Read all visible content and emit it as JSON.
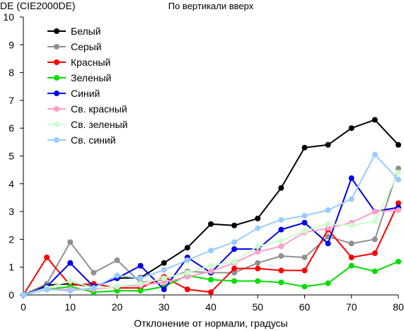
{
  "chart_data": {
    "type": "line",
    "title": "По вертикали вверх",
    "ylabel": "DE (CIE2000DE)",
    "xlabel": "Отклонение от нормали, градусы",
    "xlim": [
      0,
      80
    ],
    "ylim": [
      0,
      10
    ],
    "xticks": [
      0,
      10,
      20,
      30,
      40,
      50,
      60,
      70,
      80
    ],
    "yticks": [
      0,
      1,
      2,
      3,
      4,
      5,
      6,
      7,
      8,
      9,
      10
    ],
    "grid": false,
    "legend_position": "top-left",
    "x": [
      0,
      5,
      10,
      15,
      20,
      25,
      30,
      35,
      40,
      45,
      50,
      55,
      60,
      65,
      70,
      75,
      80
    ],
    "series": [
      {
        "name": "Белый",
        "color": "#000000",
        "values": [
          0,
          0.35,
          0.4,
          0.3,
          0.6,
          0.62,
          1.15,
          1.7,
          2.55,
          2.5,
          2.75,
          3.85,
          5.3,
          5.4,
          6.0,
          6.3,
          5.4
        ]
      },
      {
        "name": "Серый",
        "color": "#909090",
        "values": [
          0,
          0.4,
          1.9,
          0.8,
          1.25,
          0.45,
          0.55,
          0.85,
          0.8,
          0.8,
          1.15,
          1.4,
          1.35,
          2.1,
          1.85,
          2.0,
          4.55
        ]
      },
      {
        "name": "Красный",
        "color": "#ff0000",
        "values": [
          0,
          1.35,
          0.35,
          0.4,
          0.25,
          0.25,
          0.65,
          0.2,
          0.1,
          0.95,
          0.95,
          0.88,
          0.88,
          2.35,
          1.35,
          1.5,
          3.3
        ]
      },
      {
        "name": "Зеленый",
        "color": "#00dd00",
        "values": [
          0,
          0.2,
          0.3,
          0.1,
          0.15,
          0.15,
          0.3,
          0.7,
          0.55,
          0.5,
          0.5,
          0.45,
          0.3,
          0.42,
          1.05,
          0.85,
          1.2
        ]
      },
      {
        "name": "Синий",
        "color": "#0000ee",
        "values": [
          0,
          0.3,
          1.15,
          0.3,
          0.6,
          1.05,
          0.2,
          1.35,
          0.8,
          1.65,
          1.65,
          2.35,
          2.6,
          1.85,
          4.2,
          3.0,
          3.15
        ]
      },
      {
        "name": "Св. красный",
        "color": "#ff9ec8",
        "values": [
          0,
          0.2,
          0.2,
          0.2,
          0.3,
          0.35,
          0.45,
          0.65,
          0.85,
          1.15,
          1.55,
          1.75,
          2.25,
          2.4,
          2.6,
          3.0,
          3.05
        ]
      },
      {
        "name": "Св. зеленый",
        "color": "#ccffcc",
        "values": [
          0,
          0.25,
          0.5,
          0.25,
          0.3,
          0.4,
          0.6,
          0.8,
          1.05,
          1.2,
          1.75,
          1.95,
          2.3,
          2.55,
          2.5,
          2.65,
          4.4
        ]
      },
      {
        "name": "Св. синий",
        "color": "#99ccff",
        "values": [
          0,
          0.2,
          0.15,
          0.25,
          0.7,
          0.6,
          0.9,
          1.25,
          1.6,
          1.9,
          2.4,
          2.7,
          2.85,
          3.05,
          3.45,
          5.05,
          4.15
        ]
      }
    ]
  }
}
